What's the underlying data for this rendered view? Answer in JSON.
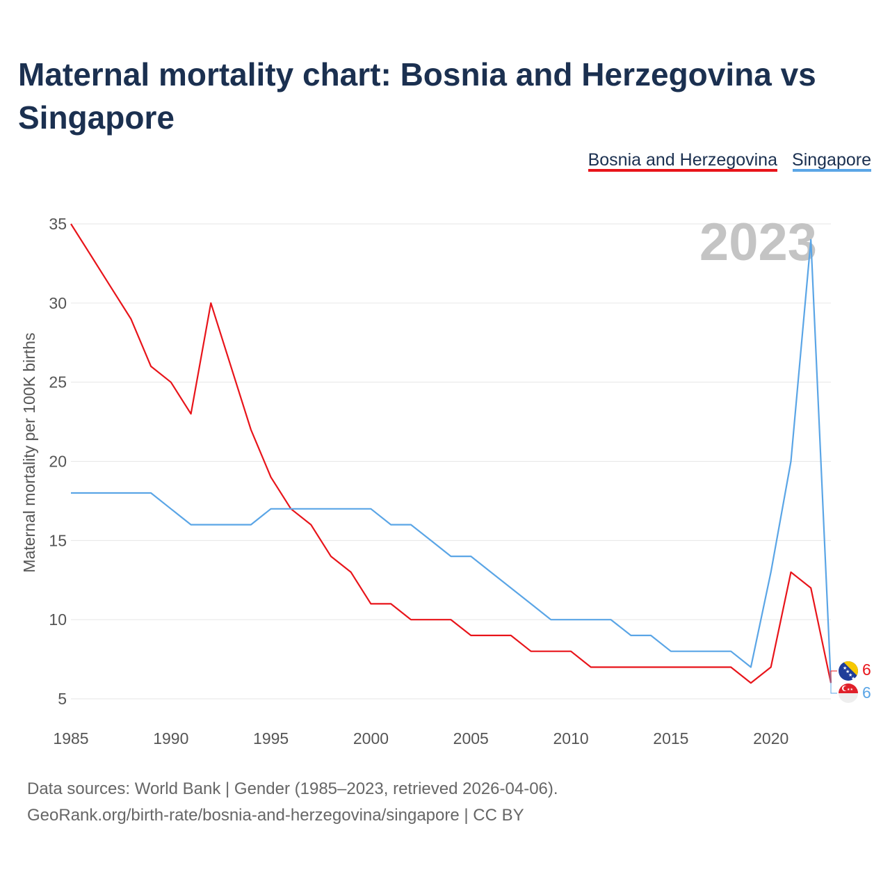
{
  "title": "Maternal mortality chart: Bosnia and Herzegovina vs Singapore",
  "footer": {
    "line1": "Data sources: World Bank | Gender (1985–2023, retrieved 2026-04-06).",
    "line2": "GeoRank.org/birth-rate/bosnia-and-herzegovina/singapore | CC BY"
  },
  "chart_data": {
    "type": "line",
    "title": "Maternal mortality chart: Bosnia and Herzegovina vs Singapore",
    "xlabel": "",
    "ylabel": "Maternal mortality per 100K births",
    "xlim": [
      1985,
      2023
    ],
    "ylim": [
      5,
      35
    ],
    "x_ticks": [
      1985,
      1990,
      1995,
      2000,
      2005,
      2010,
      2015,
      2020
    ],
    "y_ticks": [
      5,
      10,
      15,
      20,
      25,
      30,
      35
    ],
    "current_year_label": "2023",
    "grid": true,
    "legend_position": "top-right",
    "x": [
      1985,
      1986,
      1987,
      1988,
      1989,
      1990,
      1991,
      1992,
      1993,
      1994,
      1995,
      1996,
      1997,
      1998,
      1999,
      2000,
      2001,
      2002,
      2003,
      2004,
      2005,
      2006,
      2007,
      2008,
      2009,
      2010,
      2011,
      2012,
      2013,
      2014,
      2015,
      2016,
      2017,
      2018,
      2019,
      2020,
      2021,
      2022,
      2023
    ],
    "series": [
      {
        "name": "Bosnia and Herzegovina",
        "color": "#e8141a",
        "end_label": "6",
        "values": [
          35,
          33,
          31,
          29,
          26,
          25,
          23,
          30,
          26,
          22,
          19,
          17,
          16,
          14,
          13,
          11,
          11,
          10,
          10,
          10,
          9,
          9,
          9,
          8,
          8,
          8,
          7,
          7,
          7,
          7,
          7,
          7,
          7,
          7,
          6,
          7,
          13,
          12,
          6
        ]
      },
      {
        "name": "Singapore",
        "color": "#5aa5e6",
        "end_label": "6",
        "values": [
          18,
          18,
          18,
          18,
          18,
          17,
          16,
          16,
          16,
          16,
          17,
          17,
          17,
          17,
          17,
          17,
          16,
          16,
          15,
          14,
          14,
          13,
          12,
          11,
          10,
          10,
          10,
          10,
          9,
          9,
          8,
          8,
          8,
          8,
          7,
          13,
          20,
          34,
          6
        ]
      }
    ]
  }
}
